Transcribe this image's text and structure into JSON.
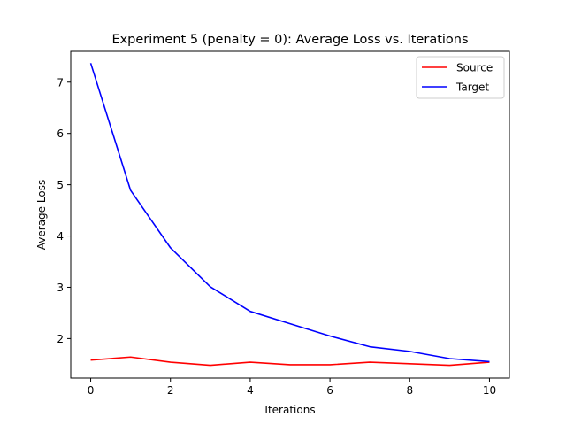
{
  "chart_data": {
    "type": "line",
    "title": "Experiment 5 (penalty = 0): Average Loss vs. Iterations",
    "xlabel": "Iterations",
    "ylabel": "Average Loss",
    "x": [
      0,
      1,
      2,
      3,
      4,
      5,
      6,
      7,
      8,
      9,
      10
    ],
    "xlim": [
      -0.5,
      10.5
    ],
    "ylim": [
      1.23,
      7.6
    ],
    "xticks": [
      0,
      2,
      4,
      6,
      8,
      10
    ],
    "yticks": [
      2,
      3,
      4,
      5,
      6,
      7
    ],
    "grid": false,
    "legend_position": "top-right",
    "series": [
      {
        "name": "Source",
        "color": "#ff0000",
        "values": [
          1.58,
          1.64,
          1.54,
          1.48,
          1.54,
          1.49,
          1.49,
          1.54,
          1.51,
          1.48,
          1.54
        ]
      },
      {
        "name": "Target",
        "color": "#0000ff",
        "values": [
          7.37,
          4.89,
          3.77,
          3.01,
          2.53,
          2.29,
          2.05,
          1.84,
          1.75,
          1.61,
          1.55
        ]
      }
    ]
  }
}
